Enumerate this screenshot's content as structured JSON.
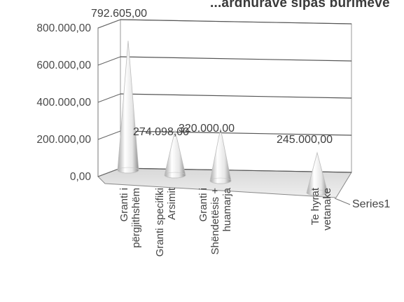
{
  "chart_data": {
    "type": "bar",
    "bar_shape": "cone-3d",
    "title": "...ardhurave sipas burimeve",
    "categories": [
      [
        "Granti i",
        "përgjithshëm"
      ],
      [
        "Granti specifiki",
        "Arsimit"
      ],
      [
        "Granti i",
        "Shëndetësis +",
        "huamarja"
      ],
      [
        "Te hyrat",
        "vetanake"
      ]
    ],
    "series": [
      {
        "name": "Series1",
        "values": [
          792605,
          274098,
          320000,
          245000
        ]
      }
    ],
    "value_labels": [
      "792.605,00",
      "274.098,00",
      "320.000,00",
      "245.000,00"
    ],
    "y_ticks": [
      "0,00",
      "200.000,00",
      "400.000,00",
      "600.000,00",
      "800.000,00"
    ],
    "ylim": [
      0,
      800000
    ],
    "grid": true,
    "legend": "none",
    "colors": {
      "cone": "#f2f2f2",
      "cone_shade": "#9a9a9a",
      "wall": "#ffffff",
      "grid": "#555555"
    }
  }
}
